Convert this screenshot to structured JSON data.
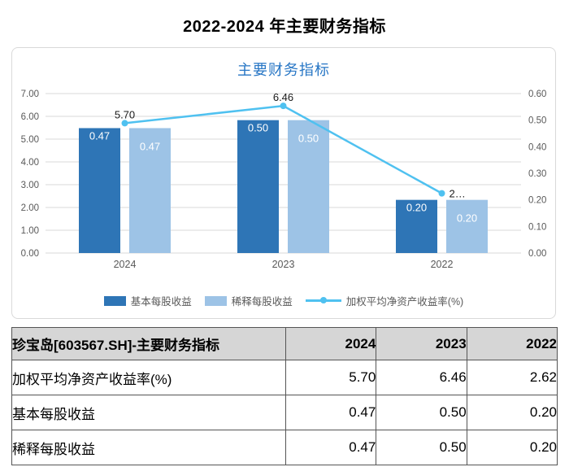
{
  "page": {
    "title": "2022-2024 年主要财务指标"
  },
  "chart": {
    "title": "主要财务指标",
    "colors": {
      "basic": "#2E75B6",
      "diluted": "#9DC3E6",
      "line": "#4FC1F0",
      "grid": "#D9D9D9",
      "axis_text": "#595959",
      "title": "#2776C5"
    },
    "legend": [
      {
        "label": "基本每股收益",
        "type": "bar",
        "colorKey": "basic"
      },
      {
        "label": "稀释每股收益",
        "type": "bar",
        "colorKey": "diluted"
      },
      {
        "label": "加权平均净资产收益率(%)",
        "type": "line",
        "colorKey": "line"
      }
    ]
  },
  "chart_data": {
    "type": "bar+line",
    "title": "主要财务指标",
    "categories": [
      "2024",
      "2023",
      "2022"
    ],
    "series": [
      {
        "name": "基本每股收益",
        "type": "bar",
        "axis": "right",
        "values": [
          0.47,
          0.5,
          0.2
        ],
        "labels": [
          "0.47",
          "0.50",
          "0.20"
        ]
      },
      {
        "name": "稀释每股收益",
        "type": "bar",
        "axis": "right",
        "values": [
          0.47,
          0.5,
          0.2
        ],
        "labels": [
          "0.47",
          "0.50",
          "0.20"
        ]
      },
      {
        "name": "加权平均净资产收益率(%)",
        "type": "line",
        "axis": "left",
        "values": [
          5.7,
          6.46,
          2.62
        ],
        "labels": [
          "5.70",
          "6.46",
          "2…"
        ]
      }
    ],
    "left_axis": {
      "min": 0,
      "max": 7,
      "ticks": [
        "7.00",
        "6.00",
        "5.00",
        "4.00",
        "3.00",
        "2.00",
        "1.00",
        "0.00"
      ]
    },
    "right_axis": {
      "min": 0,
      "max": 0.6,
      "ticks": [
        "0.60",
        "0.50",
        "0.40",
        "0.30",
        "0.20",
        "0.10",
        "0.00"
      ]
    },
    "grid": true,
    "legend_position": "bottom"
  },
  "table": {
    "header": [
      "珍宝岛[603567.SH]-主要财务指标",
      "2024",
      "2023",
      "2022"
    ],
    "rows": [
      {
        "label": "加权平均净资产收益率(%)",
        "values": [
          "5.70",
          "6.46",
          "2.62"
        ]
      },
      {
        "label": "基本每股收益",
        "values": [
          "0.47",
          "0.50",
          "0.20"
        ]
      },
      {
        "label": "稀释每股收益",
        "values": [
          "0.47",
          "0.50",
          "0.20"
        ]
      }
    ]
  }
}
